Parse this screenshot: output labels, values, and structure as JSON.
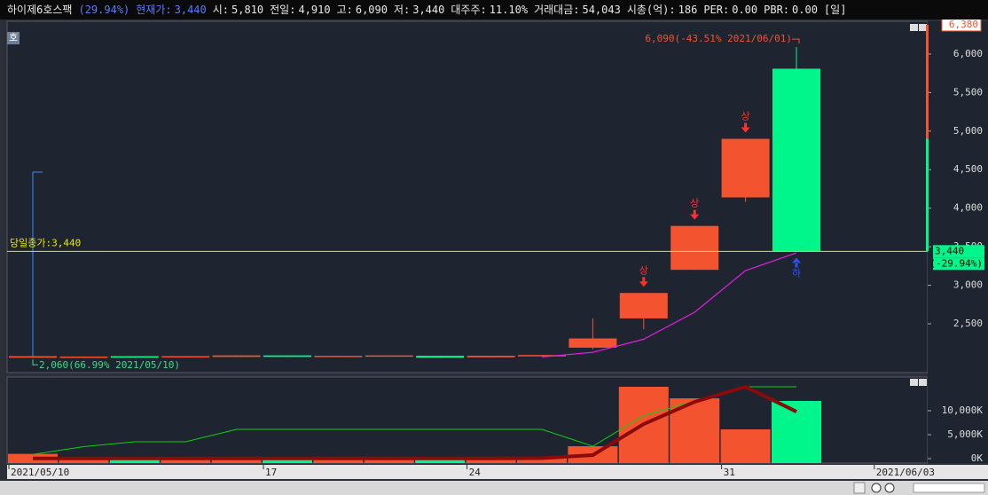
{
  "header": {
    "name": "하이제6호스팩",
    "change": "(29.94%)",
    "change_color": "#5b7cff",
    "fields": [
      {
        "label": "현재가:",
        "value": "3,440",
        "color": "#5b7cff"
      },
      {
        "label": "시:",
        "value": "5,810"
      },
      {
        "label": "전일:",
        "value": "4,910"
      },
      {
        "label": "고:",
        "value": "6,090"
      },
      {
        "label": "저:",
        "value": "3,440"
      },
      {
        "label": "대주주:",
        "value": "11.10%"
      },
      {
        "label": "거래대금:",
        "value": "54,043"
      },
      {
        "label": "시총(억):",
        "value": "186"
      },
      {
        "label": "PER:",
        "value": "0.00"
      },
      {
        "label": "PBR:",
        "value": "0.00"
      }
    ],
    "period": "[일]",
    "button": "호"
  },
  "chart_data": [
    {
      "type": "candlestick",
      "up_color": "#f4532f",
      "down_color": "#00f58a",
      "open": [
        2060,
        2065,
        2080,
        2065,
        2070,
        2090,
        2070,
        2075,
        2085,
        2065,
        2080,
        2190,
        2570,
        3200,
        4140,
        5810,
        null,
        null
      ],
      "high": [
        2080,
        2075,
        2080,
        2080,
        2090,
        2090,
        2085,
        2090,
        2085,
        2085,
        2095,
        2570,
        2900,
        3770,
        4900,
        6090,
        null,
        null
      ],
      "low": [
        2060,
        2065,
        2060,
        2065,
        2070,
        2070,
        2070,
        2075,
        2060,
        2065,
        2080,
        2170,
        2430,
        3200,
        4080,
        3440,
        null,
        null
      ],
      "close": [
        2080,
        2075,
        2060,
        2080,
        2090,
        2070,
        2085,
        2090,
        2060,
        2085,
        2095,
        2310,
        2900,
        3770,
        4900,
        3440,
        null,
        null
      ],
      "ma": {
        "color": "#e020e0",
        "values": [
          null,
          null,
          null,
          null,
          null,
          null,
          null,
          null,
          null,
          null,
          2070,
          2130,
          2300,
          2650,
          3190,
          3420,
          null,
          null
        ]
      },
      "markers": [
        null,
        null,
        null,
        null,
        null,
        null,
        null,
        null,
        null,
        null,
        null,
        null,
        "상",
        "상",
        "상",
        "하",
        null,
        null
      ],
      "high_label": "6,090(-43.51% 2021/06/01)",
      "low_label": "2,060(66.99% 2021/05/10)",
      "close_line": {
        "label": "당일종가:3,440",
        "value": 3440,
        "color": "#e8e800"
      },
      "top_label": {
        "value": 6380,
        "label": "6,380"
      },
      "price_label": {
        "value": 3440,
        "label": "3,440"
      },
      "change_label": "(-29.94%)",
      "ylim": [
        1890,
        6425
      ],
      "yticks": [
        {
          "value": 2500,
          "label": "2,500"
        },
        {
          "value": 3000,
          "label": "3,000"
        },
        {
          "value": 3500,
          "label": "3,500"
        },
        {
          "value": 4000,
          "label": "4,000"
        },
        {
          "value": 4500,
          "label": "4,500"
        },
        {
          "value": 5000,
          "label": "5,000"
        },
        {
          "value": 5500,
          "label": "5,500"
        },
        {
          "value": 6000,
          "label": "6,000"
        }
      ],
      "grid": false
    },
    {
      "type": "bar",
      "categories": [
        "2021/05/10",
        null,
        null,
        null,
        null,
        "17",
        null,
        null,
        null,
        "24",
        null,
        null,
        null,
        null,
        "31",
        null,
        null,
        "2021/06/03"
      ],
      "values": [
        1000,
        100,
        100,
        100,
        100,
        100,
        100,
        100,
        100,
        100,
        100,
        2590,
        15000,
        12590,
        6110,
        12040,
        null,
        null
      ],
      "series": [
        {
          "color": "#10d010",
          "values": [
            880,
            2500,
            3520,
            3520,
            6110,
            6110,
            6110,
            6110,
            6110,
            6110,
            6110,
            2590,
            9000,
            12000,
            15000,
            15000,
            null,
            null
          ]
        },
        {
          "color": "#8b0a0a",
          "values": [
            50,
            50,
            50,
            50,
            50,
            50,
            50,
            50,
            50,
            50,
            100,
            740,
            7220,
            11850,
            15000,
            9810,
            null,
            null
          ]
        }
      ],
      "ylim": [
        0,
        16850
      ],
      "yticks": [
        {
          "value": 0,
          "label": "0K"
        },
        {
          "value": 5000,
          "label": "5,000K"
        },
        {
          "value": 10000,
          "label": "10,000K"
        }
      ]
    }
  ]
}
